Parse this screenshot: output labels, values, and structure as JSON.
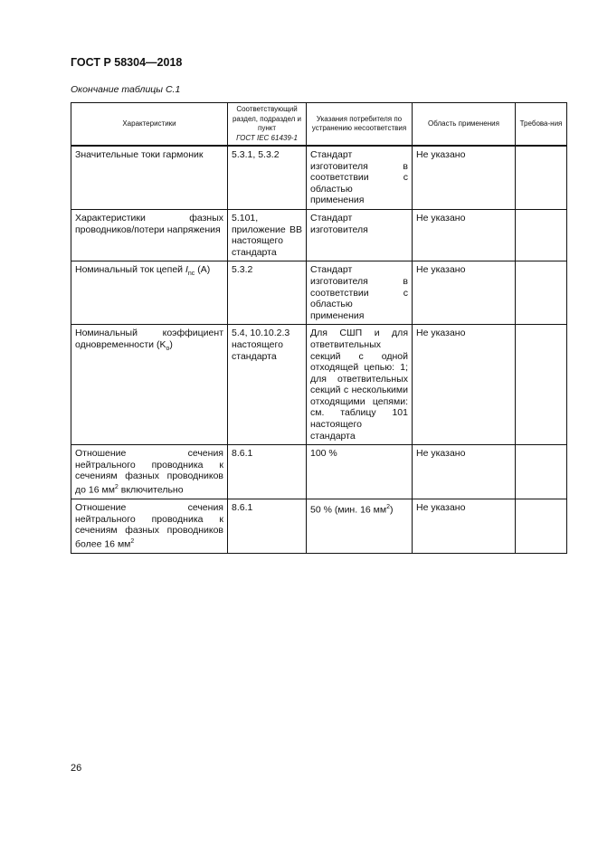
{
  "header": {
    "doc_id": "ГОСТ Р 58304—2018"
  },
  "caption": "Окончание таблицы С.1",
  "table": {
    "columns": [
      {
        "label": "Характеристики"
      },
      {
        "label": "Соответствующий раздел, подраздел и пункт",
        "label_italic": "ГОСТ IEC 61439-1"
      },
      {
        "label": "Указания потребителя по устранению несоответствия"
      },
      {
        "label": "Область применения"
      },
      {
        "label": "Требова-ния"
      }
    ],
    "rows": [
      {
        "c1": "Значительные токи гармоник",
        "c2": "5.3.1, 5.3.2",
        "c3": "Стандарт изготовителя в соответствии с областью применения",
        "c4": "Не указано",
        "c5": ""
      },
      {
        "c1": "Характеристики фазных проводников/потери напряжения",
        "c2": "5.101, приложение ВВ настоящего стандарта",
        "c3": "Стандарт изготовителя",
        "c4": "Не указано",
        "c5": ""
      },
      {
        "c1_pre": "Номинальный ток цепей ",
        "c1_var": "I",
        "c1_sub": "nc",
        "c1_post": " (A)",
        "c2": "5.3.2",
        "c3": "Стандарт изготовителя в соответствии с областью применения",
        "c4": "Не указано",
        "c5": ""
      },
      {
        "c1_pre": "Номинальный коэффициент одновременности (K",
        "c1_sub": "o",
        "c1_post": ")",
        "c2": "5.4, 10.10.2.3 настоящего стандарта",
        "c3": "Для СШП и для ответвительных секций с одной отходящей цепью: 1; для ответвительных секций с несколькими отходящими цепями: см. таблицу 101 настоящего стандарта",
        "c4": "Не указано",
        "c5": ""
      },
      {
        "c1_pre": "Отношение сечения нейтрального проводника к сечениям фазных проводников до 16 мм",
        "c1_sup": "2",
        "c1_post": " включительно",
        "c2": "8.6.1",
        "c3": "100 %",
        "c4": "Не указано",
        "c5": ""
      },
      {
        "c1_pre": "Отношение сечения нейтрального проводника к сечениям фазных проводников более 16 мм",
        "c1_sup": "2",
        "c2": "8.6.1",
        "c3_pre": "50 % (мин. 16 мм",
        "c3_sup": "2",
        "c3_post": ")",
        "c4": "Не указано",
        "c5": ""
      }
    ]
  },
  "footer": {
    "page_number": "26"
  }
}
